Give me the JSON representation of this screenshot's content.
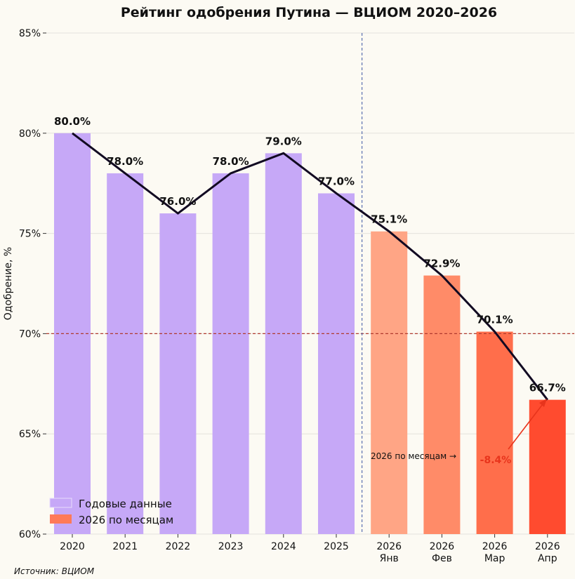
{
  "chart_data": {
    "type": "bar",
    "title": "Рейтинг одобрения Путина — ВЦИОМ 2020–2026",
    "ylabel": "Одобрение, %",
    "xlabel": "",
    "ylim": [
      60,
      85
    ],
    "yticks": [
      60,
      65,
      70,
      75,
      80,
      85
    ],
    "ytick_suffix": "%",
    "categories": [
      "2020",
      "2021",
      "2022",
      "2023",
      "2024",
      "2025",
      "2026\nЯнв",
      "2026\nФев",
      "2026\nМар",
      "2026\nАпр"
    ],
    "values": [
      80.0,
      78.0,
      76.0,
      78.0,
      79.0,
      77.0,
      75.1,
      72.9,
      70.1,
      66.7
    ],
    "data_labels": [
      "80.0%",
      "78.0%",
      "76.0%",
      "78.0%",
      "79.0%",
      "77.0%",
      "75.1%",
      "72.9%",
      "70.1%",
      "66.7%"
    ],
    "bar_colors": [
      "#c6a8f7",
      "#c6a8f7",
      "#c6a8f7",
      "#c6a8f7",
      "#c6a8f7",
      "#c6a8f7",
      "#ffa585",
      "#ff8b68",
      "#ff6e4b",
      "#ff4b2f"
    ],
    "line_color": "#120a22",
    "reference_line": {
      "y": 70,
      "color": "#b03a2e",
      "style": "dashed"
    },
    "divider_color": "#5a70b0",
    "grid": true,
    "legend": {
      "placement": "bottom-left",
      "entries": [
        {
          "label": "Годовые данные",
          "color": "#c6a8f7"
        },
        {
          "label": "2026 по месяцам",
          "color": "#ff7a58"
        }
      ]
    },
    "annotations": {
      "section_label": "2026 по месяцам →",
      "change_label": "-8.4%",
      "change_color": "#e8341c"
    },
    "source": "Источник: ВЦИОМ"
  }
}
